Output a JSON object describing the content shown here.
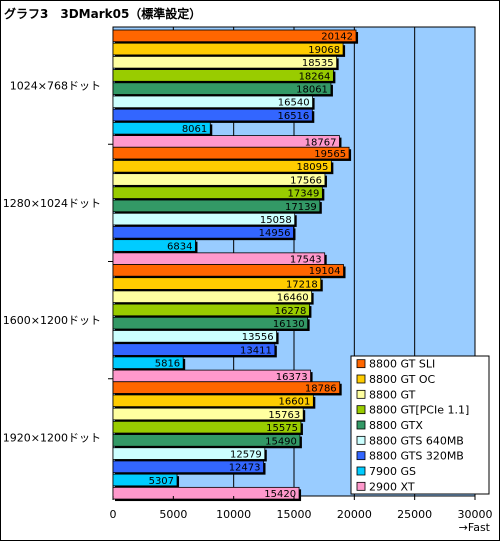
{
  "chart_title": "グラフ3　3DMark05（標準設定）",
  "chart_data": {
    "type": "bar",
    "orientation": "horizontal",
    "title": "グラフ3　3DMark05（標準設定）",
    "xlabel": "→Fast",
    "ylabel": "",
    "xlim": [
      0,
      30000
    ],
    "x_ticks": [
      0,
      5000,
      10000,
      15000,
      20000,
      25000,
      30000
    ],
    "grid": "vertical",
    "legend_position": "bottom-right",
    "categories": [
      "1024×768ドット",
      "1280×1024ドット",
      "1600×1200ドット",
      "1920×1200ドット"
    ],
    "series": [
      {
        "name": "8800 GT SLI",
        "color": "#ff6600",
        "values": [
          20142,
          19565,
          19104,
          18786
        ]
      },
      {
        "name": "8800 GT OC",
        "color": "#ffcc00",
        "values": [
          19068,
          18095,
          17218,
          16601
        ]
      },
      {
        "name": "8800 GT",
        "color": "#ffffa0",
        "values": [
          18535,
          17566,
          16460,
          15763
        ]
      },
      {
        "name": "8800 GT[PCIe 1.1]",
        "color": "#99cc00",
        "values": [
          18264,
          17349,
          16278,
          15575
        ]
      },
      {
        "name": "8800 GTX",
        "color": "#339966",
        "values": [
          18061,
          17139,
          16130,
          15490
        ]
      },
      {
        "name": "8800 GTS 640MB",
        "color": "#ccffff",
        "values": [
          16540,
          15058,
          13556,
          12579
        ]
      },
      {
        "name": "8800 GTS 320MB",
        "color": "#3366ff",
        "values": [
          16516,
          14956,
          13411,
          12473
        ]
      },
      {
        "name": "7900 GS",
        "color": "#00ccff",
        "values": [
          8061,
          6834,
          5816,
          5307
        ]
      },
      {
        "name": "2900 XT",
        "color": "#ff99cc",
        "values": [
          18767,
          17543,
          16373,
          15420
        ]
      }
    ],
    "plot_background": "#99ccff"
  }
}
